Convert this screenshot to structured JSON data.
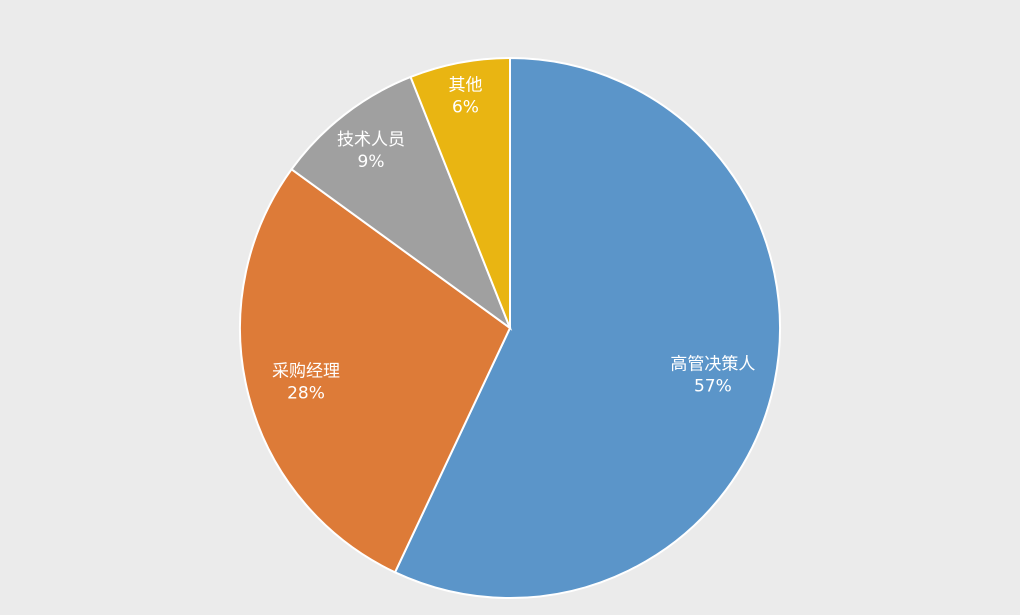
{
  "chart_data": {
    "type": "pie",
    "start": "top",
    "direction": "clockwise",
    "slices": [
      {
        "label": "高管决策人",
        "value": 57,
        "display": "57%",
        "color": "#5b95c9"
      },
      {
        "label": "采购经理",
        "value": 28,
        "display": "28%",
        "color": "#dd7b38"
      },
      {
        "label": "技术人员",
        "value": 9,
        "display": "9%",
        "color": "#a0a0a0"
      },
      {
        "label": "其他",
        "value": 6,
        "display": "6%",
        "color": "#e9b512"
      }
    ],
    "data_labels": "inside (category name and percentage)",
    "legend": "none"
  }
}
